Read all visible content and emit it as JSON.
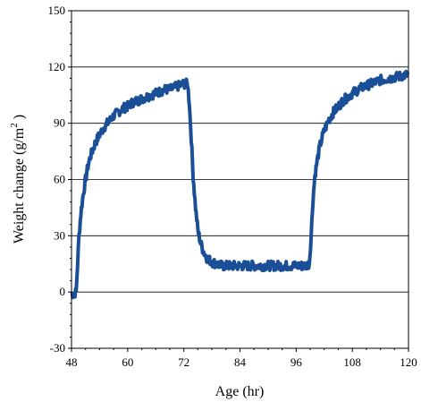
{
  "chart_data": {
    "type": "line",
    "xlabel": "Age (hr)",
    "ylabel": "Weight change (g/m",
    "ylabel_sup": "2",
    "ylabel_close": " )",
    "xlim": [
      48,
      120
    ],
    "ylim": [
      -30,
      150
    ],
    "xticks": [
      48,
      60,
      72,
      84,
      96,
      108,
      120
    ],
    "yticks": [
      -30,
      0,
      30,
      60,
      90,
      120,
      150
    ],
    "grid": "horizontal",
    "line_color": "#1a4e96",
    "series": [
      {
        "x": [
          48,
          48.5,
          49,
          49.3,
          49.6,
          50,
          50.5,
          51,
          51.5,
          52,
          53,
          54,
          55,
          56,
          57,
          58,
          59,
          60,
          61,
          62,
          63,
          64,
          65,
          66,
          67,
          68,
          69,
          70,
          71,
          72,
          72.8,
          73.2,
          73.6,
          74,
          74.5,
          75,
          75.5,
          76,
          76.5,
          77,
          77.5,
          78,
          79,
          80,
          82,
          84,
          86,
          88,
          90,
          92,
          94,
          96,
          98,
          98.8,
          99.2,
          99.6,
          100,
          100.5,
          101,
          101.5,
          102,
          103,
          104,
          105,
          106,
          108,
          110,
          112,
          114,
          116,
          118,
          120
        ],
        "y": [
          -1,
          -1,
          0,
          15,
          30,
          42,
          52,
          60,
          67,
          72,
          79,
          84,
          88,
          91,
          94,
          96,
          98,
          99,
          101,
          102,
          103,
          104,
          105,
          106,
          107,
          108,
          108,
          109,
          110,
          111,
          111,
          100,
          82,
          62,
          45,
          33,
          27,
          23,
          20,
          18,
          17,
          16,
          15,
          14,
          14,
          14,
          14,
          14,
          14,
          14,
          14,
          14,
          14,
          15,
          30,
          50,
          62,
          70,
          77,
          82,
          86,
          92,
          96,
          99,
          102,
          106,
          109,
          111,
          113,
          114,
          115,
          116
        ]
      }
    ]
  }
}
